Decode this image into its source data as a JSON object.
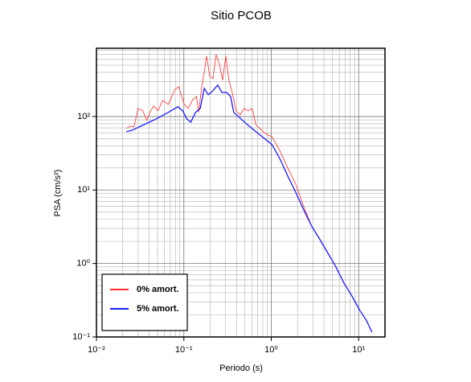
{
  "chart_data": {
    "type": "line",
    "title": "Sitio PCOB",
    "x_label": "Periodo (s)",
    "y_label": "PSA (cm/s²)",
    "log_x": true,
    "log_y": true,
    "grid": true,
    "legend_position": "lower left",
    "xlim": [
      0.01,
      20
    ],
    "ylim": [
      0.1,
      850
    ],
    "xticks": [
      {
        "value": 0.01,
        "label": "10⁻²"
      },
      {
        "value": 0.1,
        "label": "10⁻¹"
      },
      {
        "value": 1,
        "label": "10⁰"
      },
      {
        "value": 10,
        "label": "10¹"
      }
    ],
    "yticks": [
      {
        "value": 0.1,
        "label": "10⁻¹"
      },
      {
        "value": 1,
        "label": "10⁰"
      },
      {
        "value": 10,
        "label": "10¹"
      },
      {
        "value": 100,
        "label": "10²"
      }
    ],
    "series": [
      {
        "name": "0% amort.",
        "color": "#ff2a2a",
        "x": [
          0.022,
          0.0242,
          0.0269,
          0.0299,
          0.0339,
          0.0376,
          0.0418,
          0.0454,
          0.0505,
          0.0573,
          0.0664,
          0.0785,
          0.0873,
          0.101,
          0.112,
          0.125,
          0.139,
          0.148,
          0.16,
          0.171,
          0.182,
          0.198,
          0.215,
          0.234,
          0.255,
          0.277,
          0.302,
          0.328,
          0.357,
          0.396,
          0.44,
          0.489,
          0.543,
          0.604,
          0.67,
          0.745,
          0.827,
          0.918,
          1.02,
          1.26,
          1.56,
          1.92,
          2.37,
          2.92,
          3.61,
          4.45,
          5.49,
          6.78,
          8.36,
          10.3,
          12.2,
          14.2
        ],
        "values": [
          68.7,
          74.1,
          72.2,
          129,
          120,
          88.3,
          120,
          139,
          120,
          166,
          146,
          230,
          255,
          146,
          129,
          166,
          188,
          114,
          255,
          402,
          665,
          354,
          328,
          698,
          516,
          312,
          665,
          312,
          213,
          120,
          105,
          129,
          120,
          129,
          76,
          68.7,
          60.5,
          56.1,
          53.3,
          33.9,
          19.5,
          11.7,
          5.8,
          3.17,
          2.11,
          1.38,
          0.897,
          0.542,
          0.362,
          0.23,
          0.17,
          0.116
        ]
      },
      {
        "name": "5% amort.",
        "color": "#1a1aff",
        "x": [
          0.022,
          0.0258,
          0.0353,
          0.0484,
          0.0664,
          0.0855,
          0.0969,
          0.108,
          0.12,
          0.136,
          0.154,
          0.171,
          0.19,
          0.211,
          0.244,
          0.272,
          0.308,
          0.342,
          0.372,
          0.44,
          0.543,
          0.67,
          0.827,
          1.02,
          1.26,
          1.56,
          1.92,
          2.37,
          2.92,
          3.61,
          4.45,
          5.49,
          6.78,
          8.36,
          10.3,
          12.2,
          14.2
        ],
        "values": [
          62.1,
          65.3,
          78,
          92.9,
          114,
          136,
          120,
          92.9,
          84,
          114,
          129,
          242,
          198,
          219,
          268,
          213,
          213,
          188,
          114,
          95.3,
          76,
          62.1,
          50.7,
          41.5,
          26.4,
          15.1,
          9.14,
          5.25,
          3.17,
          2.11,
          1.38,
          0.897,
          0.542,
          0.362,
          0.23,
          0.17,
          0.116
        ]
      }
    ]
  }
}
